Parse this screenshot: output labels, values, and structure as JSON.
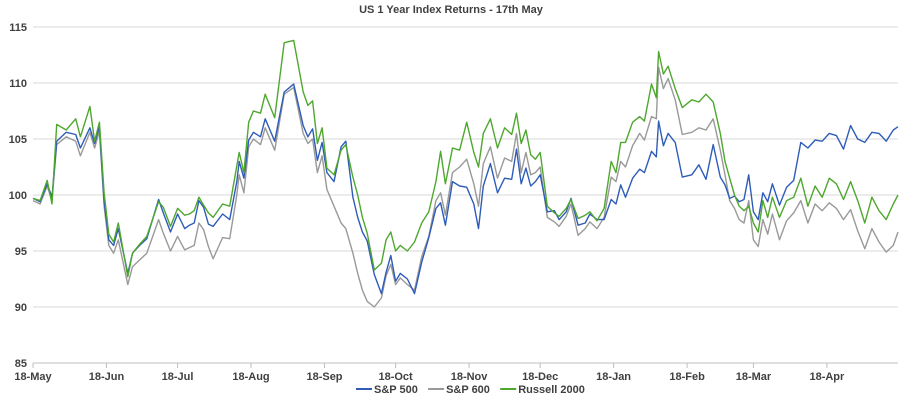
{
  "chart_data": {
    "type": "line",
    "title": "US 1 Year Index Returns - 17th May",
    "xlabel": "",
    "ylabel": "",
    "ylim": [
      85,
      115
    ],
    "y_ticks": [
      "85",
      "90",
      "95",
      "100",
      "105",
      "110",
      "115"
    ],
    "x_ticks": [
      "18-May",
      "18-Jun",
      "18-Jul",
      "18-Aug",
      "18-Sep",
      "18-Oct",
      "18-Nov",
      "18-Dec",
      "18-Jan",
      "18-Feb",
      "18-Mar",
      "18-Apr"
    ],
    "x_range": [
      0,
      365
    ],
    "x_tick_days": [
      0,
      31,
      61,
      92,
      123,
      153,
      184,
      214,
      245,
      276,
      304,
      335
    ],
    "grid": "horizontal",
    "legend_position": "bottom",
    "series": [
      {
        "name": "S&P 500",
        "color": "#2e5cb8",
        "x": [
          0,
          3,
          6,
          8,
          10,
          14,
          18,
          20,
          24,
          26,
          28,
          30,
          32,
          34,
          36,
          40,
          42,
          45,
          48,
          53,
          55,
          58,
          61,
          64,
          66,
          68,
          70,
          72,
          74,
          76,
          80,
          83,
          86,
          87,
          89,
          91,
          93,
          96,
          98,
          102,
          106,
          110,
          114,
          116,
          118,
          120,
          122,
          124,
          127,
          130,
          132,
          135,
          137,
          139,
          141,
          144,
          147,
          149,
          151,
          153,
          155,
          158,
          161,
          164,
          167,
          170,
          172,
          174,
          177,
          180,
          183,
          186,
          188,
          190,
          193,
          196,
          199,
          202,
          204,
          206,
          208,
          210,
          212,
          214,
          217,
          220,
          222,
          225,
          227,
          230,
          233,
          235,
          238,
          241,
          244,
          246,
          248,
          250,
          253,
          256,
          258,
          261,
          263,
          264,
          266,
          268,
          271,
          274,
          278,
          281,
          284,
          287,
          290,
          292,
          294,
          296,
          298,
          300,
          302,
          304,
          306,
          308,
          310,
          312,
          315,
          318,
          321,
          324,
          327,
          330,
          333,
          336,
          339,
          342,
          345,
          348,
          351,
          354,
          357,
          360,
          363,
          365
        ],
        "values": [
          99.7,
          99.4,
          101.0,
          99.8,
          104.8,
          105.6,
          105.4,
          104.2,
          106.0,
          104.6,
          106.1,
          99.5,
          96.0,
          95.5,
          97.0,
          93.0,
          94.8,
          95.5,
          96.1,
          99.6,
          98.4,
          96.7,
          98.3,
          97.0,
          97.3,
          97.5,
          99.5,
          98.9,
          97.4,
          97.2,
          98.3,
          97.8,
          101.2,
          103.0,
          101.5,
          104.9,
          105.6,
          105.2,
          106.8,
          104.8,
          109.2,
          109.9,
          106.2,
          105.2,
          105.9,
          103.1,
          104.7,
          102.0,
          101.2,
          104.3,
          104.8,
          99.8,
          98.0,
          96.7,
          95.9,
          92.9,
          91.2,
          93.1,
          94.6,
          92.3,
          93.0,
          92.5,
          91.2,
          94.0,
          96.2,
          98.8,
          99.3,
          97.3,
          101.2,
          100.8,
          100.7,
          99.2,
          97.0,
          100.8,
          102.8,
          100.2,
          101.5,
          101.4,
          104.1,
          101.0,
          102.4,
          100.8,
          101.2,
          101.8,
          98.5,
          98.6,
          97.8,
          98.5,
          99.7,
          97.3,
          97.5,
          98.3,
          97.8,
          97.8,
          99.6,
          99.2,
          100.9,
          99.8,
          101.5,
          102.3,
          102.0,
          103.9,
          103.4,
          106.6,
          104.4,
          105.5,
          104.7,
          101.6,
          101.8,
          102.7,
          101.4,
          104.5,
          101.6,
          100.9,
          99.7,
          99.9,
          99.4,
          99.6,
          101.8,
          98.5,
          97.8,
          100.2,
          99.4,
          101.0,
          99.1,
          100.7,
          101.3,
          104.7,
          104.2,
          104.9,
          104.8,
          105.5,
          105.3,
          104.1,
          106.2,
          105.0,
          104.7,
          105.6,
          105.5,
          104.8,
          105.8,
          106.1
        ]
      },
      {
        "name": "S&P 600",
        "color": "#999999",
        "x": [
          0,
          3,
          6,
          8,
          10,
          14,
          18,
          20,
          24,
          26,
          28,
          30,
          32,
          34,
          36,
          40,
          42,
          45,
          48,
          53,
          55,
          58,
          61,
          64,
          66,
          68,
          70,
          72,
          74,
          76,
          80,
          83,
          86,
          87,
          89,
          91,
          93,
          96,
          98,
          102,
          106,
          110,
          114,
          116,
          118,
          120,
          122,
          124,
          127,
          130,
          132,
          135,
          137,
          139,
          141,
          144,
          147,
          149,
          151,
          153,
          155,
          158,
          161,
          164,
          167,
          170,
          172,
          174,
          177,
          180,
          183,
          186,
          188,
          190,
          193,
          196,
          199,
          202,
          204,
          206,
          208,
          210,
          212,
          214,
          217,
          220,
          222,
          225,
          227,
          230,
          233,
          235,
          238,
          241,
          244,
          246,
          248,
          250,
          253,
          256,
          258,
          261,
          263,
          264,
          266,
          268,
          271,
          274,
          278,
          281,
          284,
          287,
          290,
          292,
          294,
          296,
          298,
          300,
          302,
          304,
          306,
          308,
          310,
          312,
          315,
          318,
          321,
          324,
          327,
          330,
          333,
          336,
          339,
          342,
          345,
          348,
          351,
          354,
          357,
          360,
          363,
          365
        ],
        "values": [
          99.5,
          99.2,
          100.8,
          99.5,
          104.5,
          105.2,
          104.8,
          103.5,
          105.6,
          104.2,
          105.7,
          99.0,
          95.5,
          94.8,
          96.0,
          92.0,
          93.6,
          94.2,
          94.8,
          97.8,
          96.6,
          95.0,
          96.3,
          95.1,
          95.3,
          95.5,
          97.5,
          96.9,
          95.4,
          94.3,
          96.2,
          96.1,
          100.0,
          101.8,
          100.2,
          104.3,
          105.0,
          104.5,
          106.0,
          104.0,
          109.0,
          109.6,
          105.5,
          104.6,
          105.0,
          102.0,
          103.5,
          100.5,
          99.0,
          97.5,
          97.0,
          94.8,
          93.0,
          91.5,
          90.5,
          90.0,
          90.8,
          92.8,
          93.8,
          92.0,
          92.6,
          92.0,
          91.5,
          94.5,
          96.3,
          99.5,
          100.2,
          98.2,
          102.0,
          102.5,
          103.2,
          101.0,
          99.0,
          102.8,
          104.3,
          101.5,
          103.3,
          103.0,
          105.5,
          102.0,
          103.8,
          101.8,
          102.0,
          102.5,
          98.0,
          97.6,
          97.2,
          98.1,
          99.2,
          96.4,
          97.0,
          97.6,
          97.0,
          98.0,
          101.6,
          101.2,
          103.0,
          102.5,
          104.4,
          105.5,
          104.9,
          107.0,
          106.8,
          111.4,
          109.5,
          110.4,
          108.5,
          105.4,
          105.6,
          106.0,
          105.8,
          106.8,
          104.0,
          101.8,
          99.5,
          98.8,
          97.8,
          97.5,
          99.5,
          96.0,
          95.4,
          97.8,
          96.5,
          98.3,
          96.0,
          97.7,
          98.4,
          99.5,
          97.5,
          99.2,
          98.6,
          99.3,
          98.8,
          97.8,
          98.7,
          96.8,
          95.2,
          97.0,
          95.8,
          94.9,
          95.5,
          96.7
        ]
      },
      {
        "name": "Russell 2000",
        "color": "#4ea72e",
        "x": [
          0,
          3,
          6,
          8,
          10,
          14,
          18,
          20,
          24,
          26,
          28,
          30,
          32,
          34,
          36,
          40,
          42,
          45,
          48,
          53,
          55,
          58,
          61,
          64,
          66,
          68,
          70,
          72,
          74,
          76,
          80,
          83,
          86,
          87,
          89,
          91,
          93,
          96,
          98,
          102,
          106,
          110,
          114,
          116,
          118,
          120,
          122,
          124,
          127,
          130,
          132,
          135,
          137,
          139,
          141,
          144,
          147,
          149,
          151,
          153,
          155,
          158,
          161,
          164,
          167,
          170,
          172,
          174,
          177,
          180,
          183,
          186,
          188,
          190,
          193,
          196,
          199,
          202,
          204,
          206,
          208,
          210,
          212,
          214,
          217,
          220,
          222,
          225,
          227,
          230,
          233,
          235,
          238,
          241,
          244,
          246,
          248,
          250,
          253,
          256,
          258,
          261,
          263,
          264,
          266,
          268,
          271,
          274,
          278,
          281,
          284,
          287,
          290,
          292,
          294,
          296,
          298,
          300,
          302,
          304,
          306,
          308,
          310,
          312,
          315,
          318,
          321,
          324,
          327,
          330,
          333,
          336,
          339,
          342,
          345,
          348,
          351,
          354,
          357,
          360,
          363,
          365
        ],
        "values": [
          99.7,
          99.5,
          101.3,
          99.2,
          106.3,
          105.8,
          106.8,
          105.2,
          107.9,
          104.8,
          106.5,
          100.2,
          96.5,
          95.8,
          97.5,
          92.7,
          94.8,
          95.6,
          96.3,
          99.4,
          98.9,
          97.2,
          98.8,
          98.2,
          98.3,
          98.6,
          99.8,
          99.1,
          98.4,
          98.0,
          99.2,
          99.0,
          102.6,
          103.8,
          102.0,
          106.5,
          107.5,
          107.3,
          109.0,
          106.9,
          113.6,
          113.8,
          109.2,
          108.0,
          108.4,
          104.6,
          106.0,
          102.4,
          101.8,
          104.0,
          104.5,
          101.6,
          100.0,
          98.0,
          96.6,
          93.3,
          93.9,
          96.0,
          96.7,
          95.0,
          95.5,
          95.0,
          95.8,
          97.5,
          98.5,
          101.2,
          103.9,
          101.0,
          104.2,
          104.0,
          106.5,
          103.8,
          102.5,
          105.5,
          106.8,
          104.2,
          106.0,
          105.4,
          107.3,
          104.6,
          105.8,
          103.6,
          103.2,
          103.8,
          99.0,
          98.4,
          98.1,
          98.8,
          99.6,
          97.9,
          98.2,
          98.5,
          97.7,
          98.8,
          103.0,
          102.0,
          104.7,
          104.7,
          106.5,
          107.0,
          106.6,
          109.9,
          108.7,
          112.8,
          110.8,
          111.5,
          109.5,
          107.8,
          108.5,
          108.3,
          109.0,
          108.3,
          105.5,
          103.0,
          101.5,
          100.0,
          99.0,
          98.6,
          99.0,
          97.5,
          96.7,
          99.5,
          98.0,
          99.8,
          98.0,
          99.5,
          99.8,
          101.5,
          99.0,
          100.8,
          99.8,
          101.5,
          101.0,
          99.6,
          101.2,
          99.5,
          97.5,
          99.8,
          98.6,
          97.8,
          99.2,
          100.0
        ]
      }
    ]
  }
}
